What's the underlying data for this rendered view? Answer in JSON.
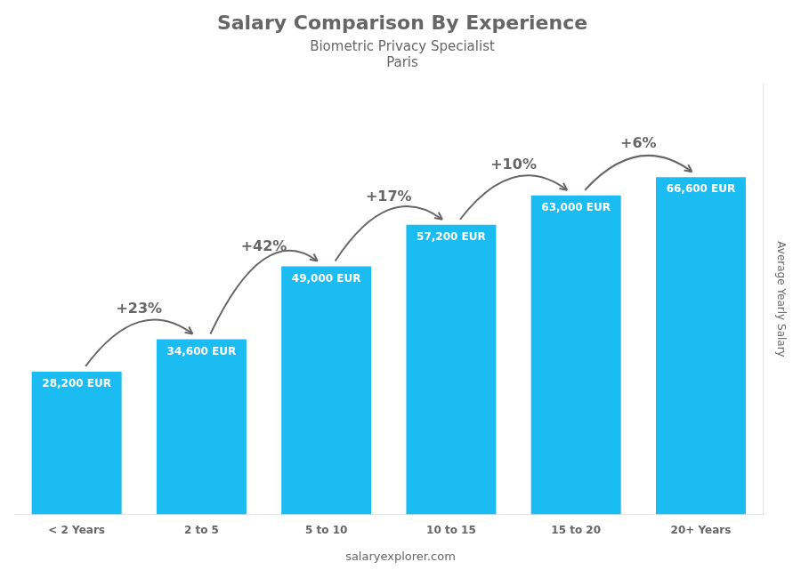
{
  "chart_data": {
    "type": "bar",
    "title": "Salary Comparison By Experience",
    "subtitle": [
      "Biometric Privacy Specialist",
      "Paris"
    ],
    "categories": [
      "< 2 Years",
      "2 to 5",
      "5 to 10",
      "10 to 15",
      "15 to 20",
      "20+ Years"
    ],
    "values": [
      28200,
      34600,
      49000,
      57200,
      63000,
      66600
    ],
    "value_labels": [
      "28,200 EUR",
      "34,600 EUR",
      "49,000 EUR",
      "57,200 EUR",
      "63,000 EUR",
      "66,600 EUR"
    ],
    "data_labels": true,
    "color": "#1ABCF2",
    "ylabel": "Average Yearly Salary",
    "ylim": [
      0,
      85000
    ],
    "yticks": [],
    "tick_labels": "x",
    "grid": false,
    "annotations": [
      {
        "text": "+23%",
        "between": [
          "< 2 Years",
          "2 to 5"
        ]
      },
      {
        "text": "+42%",
        "between": [
          "2 to 5",
          "5 to 10"
        ]
      },
      {
        "text": "+17%",
        "between": [
          "5 to 10",
          "10 to 15"
        ]
      },
      {
        "text": "+10%",
        "between": [
          "10 to 15",
          "15 to 20"
        ]
      },
      {
        "text": "+6%",
        "between": [
          "15 to 20",
          "20+ Years"
        ]
      }
    ],
    "watermark": "salaryexplorer.com"
  }
}
